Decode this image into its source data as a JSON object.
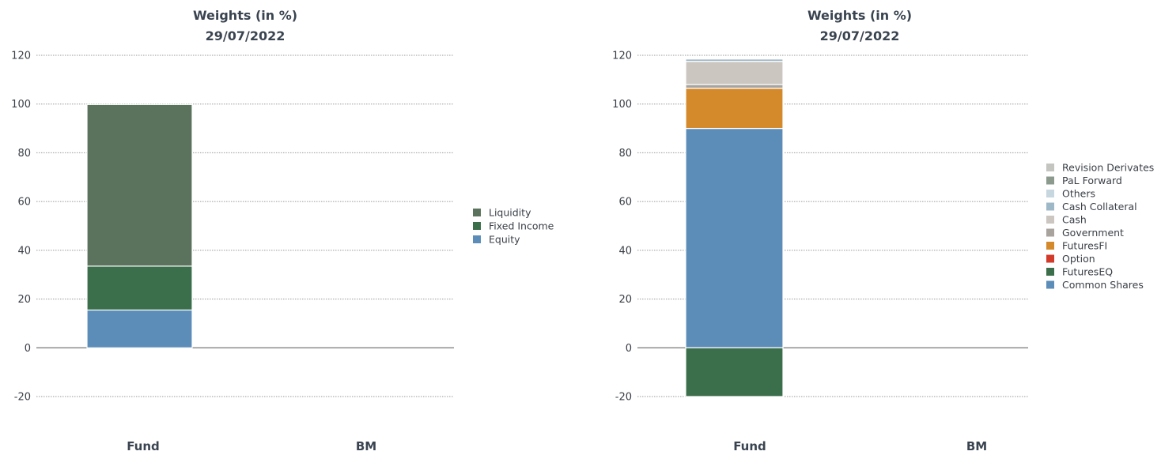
{
  "chart_data": [
    {
      "type": "bar",
      "stacked": true,
      "title": "Weights (in %)",
      "subtitle": "29/07/2022",
      "categories": [
        "Fund",
        "BM"
      ],
      "ylim": [
        -20,
        120
      ],
      "yticks": [
        120,
        100,
        80,
        60,
        40,
        20,
        0,
        -20
      ],
      "grid": true,
      "legend": "right",
      "series": [
        {
          "name": "Equity",
          "color": "#5b8db8",
          "values": [
            15.5,
            0
          ]
        },
        {
          "name": "Fixed Income",
          "color": "#3b6e4a",
          "values": [
            18,
            0
          ]
        },
        {
          "name": "Liquidity",
          "color": "#5b735d",
          "values": [
            66.3,
            0
          ]
        }
      ],
      "legend_order": [
        "Liquidity",
        "Fixed Income",
        "Equity"
      ]
    },
    {
      "type": "bar",
      "stacked": true,
      "title": "Weights (in %)",
      "subtitle": "29/07/2022",
      "categories": [
        "Fund",
        "BM"
      ],
      "ylim": [
        -20,
        120
      ],
      "yticks": [
        120,
        100,
        80,
        60,
        40,
        20,
        0,
        -20
      ],
      "grid": true,
      "legend": "right",
      "series": [
        {
          "name": "Common Shares",
          "color": "#5b8db8",
          "values": [
            90,
            0
          ]
        },
        {
          "name": "FuturesEQ",
          "color": "#3b6e4a",
          "values": [
            -20,
            0
          ]
        },
        {
          "name": "Option",
          "color": "#d23a2a",
          "values": [
            0,
            0
          ]
        },
        {
          "name": "FuturesFI",
          "color": "#d4892b",
          "values": [
            16.5,
            0
          ]
        },
        {
          "name": "Government",
          "color": "#a8a39c",
          "values": [
            1.5,
            0
          ]
        },
        {
          "name": "Cash",
          "color": "#cbc6c0",
          "values": [
            9.5,
            0
          ]
        },
        {
          "name": "Cash Collateral",
          "color": "#9fb8c8",
          "values": [
            1,
            0
          ]
        },
        {
          "name": "Others",
          "color": "#c7d7df",
          "values": [
            0.3,
            0
          ]
        },
        {
          "name": "PaL Forward",
          "color": "#8b9a8c",
          "values": [
            0,
            0
          ]
        },
        {
          "name": "Revision Derivates",
          "color": "#c4c4c0",
          "values": [
            0,
            0
          ]
        }
      ],
      "legend_order": [
        "Revision Derivates",
        "PaL Forward",
        "Others",
        "Cash Collateral",
        "Cash",
        "Government",
        "FuturesFI",
        "Option",
        "FuturesEQ",
        "Common Shares"
      ]
    }
  ]
}
